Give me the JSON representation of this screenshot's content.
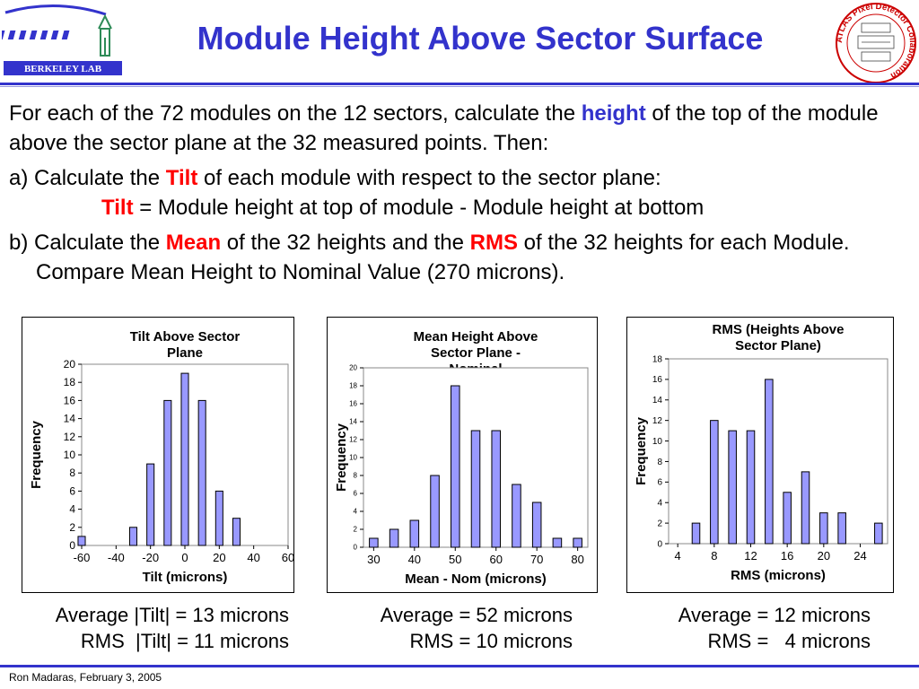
{
  "header": {
    "title": "Module Height Above Sector Surface",
    "left_logo_text": "BERKELEY LAB",
    "right_logo_text": "ATLAS Pixel Detector Collaboration"
  },
  "body": {
    "p1_a": "For each of the 72 modules on the 12 sectors, calculate the ",
    "p1_kw": "height",
    "p1_b": " of the top of the module above the sector plane at the 32 measured points. Then:",
    "p2_a": "a) Calculate the ",
    "p2_kw": "Tilt",
    "p2_b": " of each module with respect to the sector plane:",
    "p3_kw": "Tilt",
    "p3_b": " = Module height at top of module - Module height at bottom",
    "p4_a": "b) Calculate the ",
    "p4_kw1": "Mean",
    "p4_b": " of the 32 heights and the ",
    "p4_kw2": "RMS",
    "p4_c": " of the 32 heights for each Module. Compare Mean Height to Nominal Value (270 microns)."
  },
  "chart_data": [
    {
      "type": "bar",
      "title": "Tilt Above Sector Plane",
      "xlabel": "Tilt (microns)",
      "ylabel": "Frequency",
      "x": [
        -60,
        -50,
        -40,
        -30,
        -20,
        -10,
        0,
        10,
        20,
        30,
        40,
        50,
        60
      ],
      "values": [
        1,
        0,
        0,
        2,
        9,
        16,
        19,
        16,
        6,
        3,
        0,
        0,
        0
      ],
      "xticks": [
        -60,
        -40,
        -20,
        0,
        20,
        40,
        60
      ],
      "xlim": [
        -60,
        60
      ],
      "ylim": [
        0,
        20
      ],
      "yticks": [
        0,
        2,
        4,
        6,
        8,
        10,
        12,
        14,
        16,
        18,
        20
      ],
      "grid": false,
      "bar_color": "#9999ff"
    },
    {
      "type": "bar",
      "title": "Mean Height Above Sector Plane - Nominal",
      "xlabel": "Mean - Nom (microns)",
      "ylabel": "Frequency",
      "x": [
        30,
        35,
        40,
        45,
        50,
        55,
        60,
        65,
        70,
        75,
        80
      ],
      "values": [
        1,
        2,
        3,
        8,
        18,
        13,
        13,
        7,
        5,
        1,
        1
      ],
      "xticks": [
        30,
        40,
        50,
        60,
        70,
        80
      ],
      "xlim": [
        27.5,
        82.5
      ],
      "ylim": [
        0,
        20
      ],
      "yticks": [
        0,
        2,
        4,
        6,
        8,
        10,
        12,
        14,
        16,
        18,
        20
      ],
      "grid": false,
      "bar_color": "#9999ff"
    },
    {
      "type": "bar",
      "title": "RMS (Heights Above Sector Plane)",
      "xlabel": "RMS (microns)",
      "ylabel": "Frequency",
      "x": [
        4,
        6,
        8,
        10,
        12,
        14,
        16,
        18,
        20,
        22,
        24,
        26
      ],
      "values": [
        0,
        2,
        12,
        11,
        11,
        16,
        5,
        7,
        3,
        3,
        0,
        2
      ],
      "xticks": [
        4,
        8,
        12,
        16,
        20,
        24
      ],
      "xlim": [
        3,
        27
      ],
      "ylim": [
        0,
        18
      ],
      "yticks": [
        0,
        2,
        4,
        6,
        8,
        10,
        12,
        14,
        16,
        18
      ],
      "grid": false,
      "bar_color": "#9999ff"
    }
  ],
  "stats": {
    "tilt_avg": "Average |Tilt| = 13 microns",
    "tilt_rms": "RMS  |Tilt| = 11 microns",
    "mean_avg": "Average = 52 microns",
    "mean_rms": "RMS = 10 microns",
    "rms_avg": "Average = 12 microns",
    "rms_rms": "RMS =   4 microns"
  },
  "footer": {
    "text": "Ron Madaras, February 3, 2005"
  },
  "colors": {
    "accent": "#3333cc",
    "keyword_red": "#ff0000",
    "bar_fill": "#9999ff"
  }
}
